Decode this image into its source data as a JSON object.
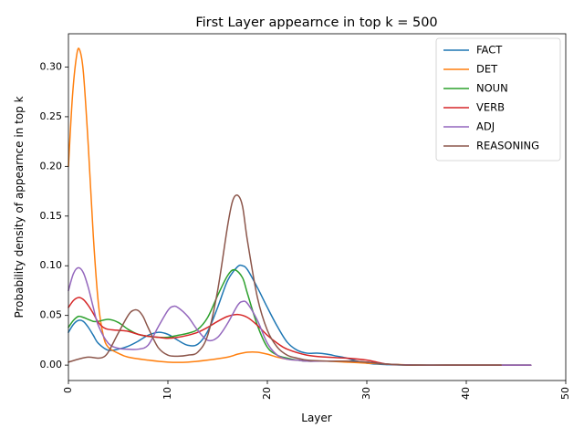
{
  "chart_data": {
    "type": "line",
    "title": "First Layer appearnce in top k = 500",
    "xlabel": "Layer",
    "ylabel": "Probability density of appearnce in top k",
    "xlim": [
      0,
      50
    ],
    "ylim": [
      -0.0155,
      0.3335
    ],
    "xticks": [
      0,
      10,
      20,
      30,
      40,
      50
    ],
    "yticks": [
      0.0,
      0.05,
      0.1,
      0.15,
      0.2,
      0.25,
      0.3
    ],
    "xtick_rotation": 90,
    "grid": false,
    "legend_position": "top-right",
    "series": [
      {
        "name": "FACT",
        "color": "#1f77b4",
        "x": [
          0,
          0.5,
          1,
          1.5,
          2,
          2.5,
          3,
          4,
          5,
          6,
          7,
          8,
          9,
          10,
          11,
          12,
          13,
          14,
          15,
          16,
          17,
          17.5,
          18,
          19,
          20,
          21,
          22,
          23,
          24,
          25,
          26,
          27,
          28,
          29,
          30,
          31,
          32,
          33,
          35,
          40,
          46.5
        ],
        "y": [
          0.033,
          0.041,
          0.045,
          0.044,
          0.038,
          0.03,
          0.022,
          0.015,
          0.016,
          0.019,
          0.024,
          0.03,
          0.033,
          0.031,
          0.025,
          0.02,
          0.021,
          0.034,
          0.058,
          0.085,
          0.099,
          0.1,
          0.096,
          0.078,
          0.058,
          0.039,
          0.023,
          0.015,
          0.012,
          0.012,
          0.011,
          0.009,
          0.007,
          0.004,
          0.002,
          0.001,
          0.0005,
          0.0002,
          0.0001,
          0.0,
          0.0
        ]
      },
      {
        "name": "DET",
        "color": "#ff7f0e",
        "x": [
          0,
          0.4,
          0.8,
          1.1,
          1.5,
          2,
          2.5,
          3,
          3.5,
          4,
          5,
          6,
          8,
          10,
          12,
          14,
          16,
          17,
          18,
          19,
          20,
          21,
          22,
          23,
          24,
          25,
          26,
          28,
          30,
          32,
          35,
          40,
          43.5
        ],
        "y": [
          0.2,
          0.27,
          0.31,
          0.318,
          0.295,
          0.22,
          0.13,
          0.063,
          0.03,
          0.018,
          0.012,
          0.008,
          0.005,
          0.003,
          0.003,
          0.005,
          0.008,
          0.011,
          0.013,
          0.013,
          0.011,
          0.008,
          0.006,
          0.005,
          0.004,
          0.004,
          0.004,
          0.003,
          0.002,
          0.001,
          0.0,
          0.0,
          0.0
        ]
      },
      {
        "name": "NOUN",
        "color": "#2ca02c",
        "x": [
          0,
          0.5,
          1,
          1.5,
          2,
          2.5,
          3,
          4,
          5,
          6,
          7,
          8,
          9,
          10,
          11,
          12,
          13,
          14,
          15,
          16,
          16.7,
          17.5,
          18,
          19,
          20,
          21,
          22,
          23,
          24,
          25,
          26,
          28,
          30,
          32,
          35,
          40,
          46.5
        ],
        "y": [
          0.038,
          0.045,
          0.049,
          0.048,
          0.046,
          0.044,
          0.044,
          0.046,
          0.043,
          0.036,
          0.031,
          0.029,
          0.028,
          0.028,
          0.03,
          0.032,
          0.036,
          0.048,
          0.07,
          0.09,
          0.096,
          0.088,
          0.072,
          0.04,
          0.018,
          0.01,
          0.007,
          0.005,
          0.004,
          0.004,
          0.004,
          0.004,
          0.003,
          0.001,
          0.0,
          0.0,
          0.0
        ]
      },
      {
        "name": "VERB",
        "color": "#d62728",
        "x": [
          0,
          0.5,
          1,
          1.5,
          2,
          2.5,
          3,
          3.5,
          4,
          5,
          6,
          7,
          8,
          9,
          10,
          11,
          12,
          13,
          14,
          15,
          16,
          17,
          18,
          19,
          20,
          21,
          22,
          24,
          26,
          28,
          30,
          31,
          32,
          33,
          35,
          40,
          46.5
        ],
        "y": [
          0.058,
          0.065,
          0.068,
          0.066,
          0.06,
          0.052,
          0.043,
          0.038,
          0.036,
          0.035,
          0.034,
          0.031,
          0.029,
          0.028,
          0.027,
          0.028,
          0.03,
          0.033,
          0.038,
          0.044,
          0.049,
          0.051,
          0.048,
          0.04,
          0.03,
          0.022,
          0.016,
          0.01,
          0.008,
          0.007,
          0.005,
          0.003,
          0.001,
          0.0005,
          0.0,
          0.0,
          0.0
        ]
      },
      {
        "name": "ADJ",
        "color": "#9467bd",
        "x": [
          0,
          0.5,
          1,
          1.5,
          2,
          2.5,
          3,
          4,
          5,
          6,
          7,
          8,
          9,
          10,
          10.5,
          11,
          12,
          13,
          14,
          15,
          16,
          17,
          17.5,
          18,
          19,
          20,
          21,
          22,
          23,
          24,
          26,
          28,
          30,
          32,
          35,
          40,
          46.5
        ],
        "y": [
          0.075,
          0.092,
          0.098,
          0.093,
          0.078,
          0.058,
          0.04,
          0.022,
          0.017,
          0.016,
          0.016,
          0.02,
          0.038,
          0.055,
          0.059,
          0.058,
          0.049,
          0.035,
          0.025,
          0.028,
          0.042,
          0.06,
          0.064,
          0.062,
          0.045,
          0.022,
          0.01,
          0.006,
          0.005,
          0.004,
          0.004,
          0.004,
          0.003,
          0.001,
          0.0,
          0.0,
          0.0
        ]
      },
      {
        "name": "REASONING",
        "color": "#8c564b",
        "x": [
          0,
          1,
          2,
          3,
          3.5,
          4,
          5,
          6,
          6.5,
          7,
          7.5,
          8,
          9,
          10,
          11,
          12,
          13,
          14,
          15,
          16,
          16.5,
          17,
          17.5,
          18,
          19,
          20,
          21,
          22,
          23,
          24,
          26,
          28,
          30,
          32,
          34,
          36,
          40,
          43.5
        ],
        "y": [
          0.003,
          0.006,
          0.008,
          0.007,
          0.008,
          0.013,
          0.032,
          0.05,
          0.055,
          0.055,
          0.049,
          0.038,
          0.018,
          0.01,
          0.009,
          0.01,
          0.013,
          0.03,
          0.075,
          0.14,
          0.165,
          0.171,
          0.16,
          0.125,
          0.068,
          0.035,
          0.018,
          0.01,
          0.007,
          0.005,
          0.004,
          0.004,
          0.003,
          0.001,
          0.0,
          0.0,
          0.0,
          0.0
        ]
      }
    ]
  }
}
